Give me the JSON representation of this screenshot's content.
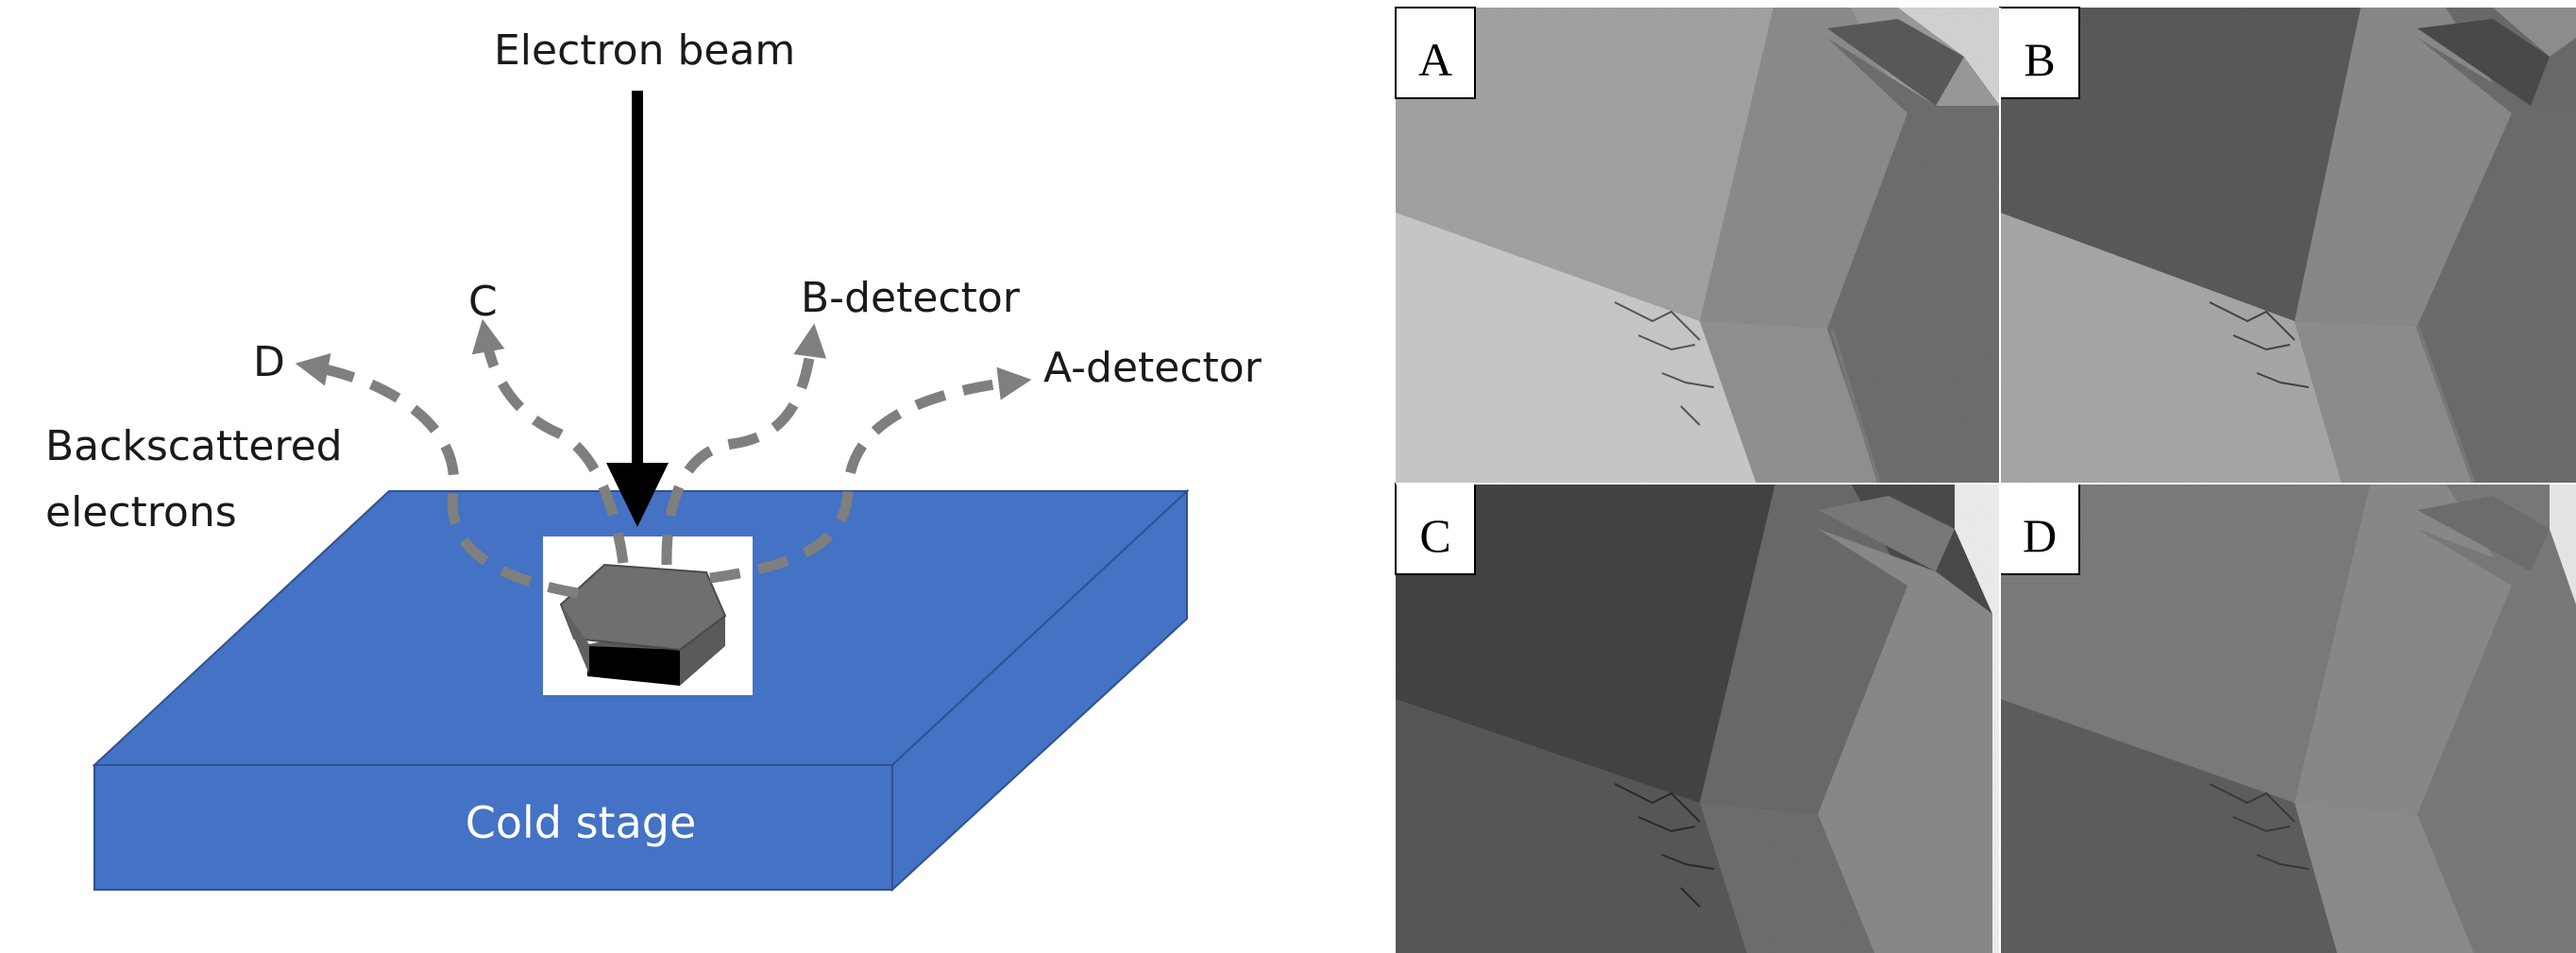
{
  "diagram": {
    "beam_label": "Electron beam",
    "backscatter_label_line1": "Backscattered",
    "backscatter_label_line2": "electrons",
    "detectors": {
      "a": "A-detector",
      "b": "B-detector",
      "c": "C",
      "d": "D"
    },
    "stage_label": "Cold stage"
  },
  "colors": {
    "stage_top": "#4472c4",
    "stage_edge": "#2f528f",
    "trajectory": "#7f7f7f",
    "beam": "#000000"
  },
  "panels": [
    {
      "letter": "A",
      "tone": "bright"
    },
    {
      "letter": "B",
      "tone": "dark-left"
    },
    {
      "letter": "C",
      "tone": "dark"
    },
    {
      "letter": "D",
      "tone": "medium"
    }
  ]
}
